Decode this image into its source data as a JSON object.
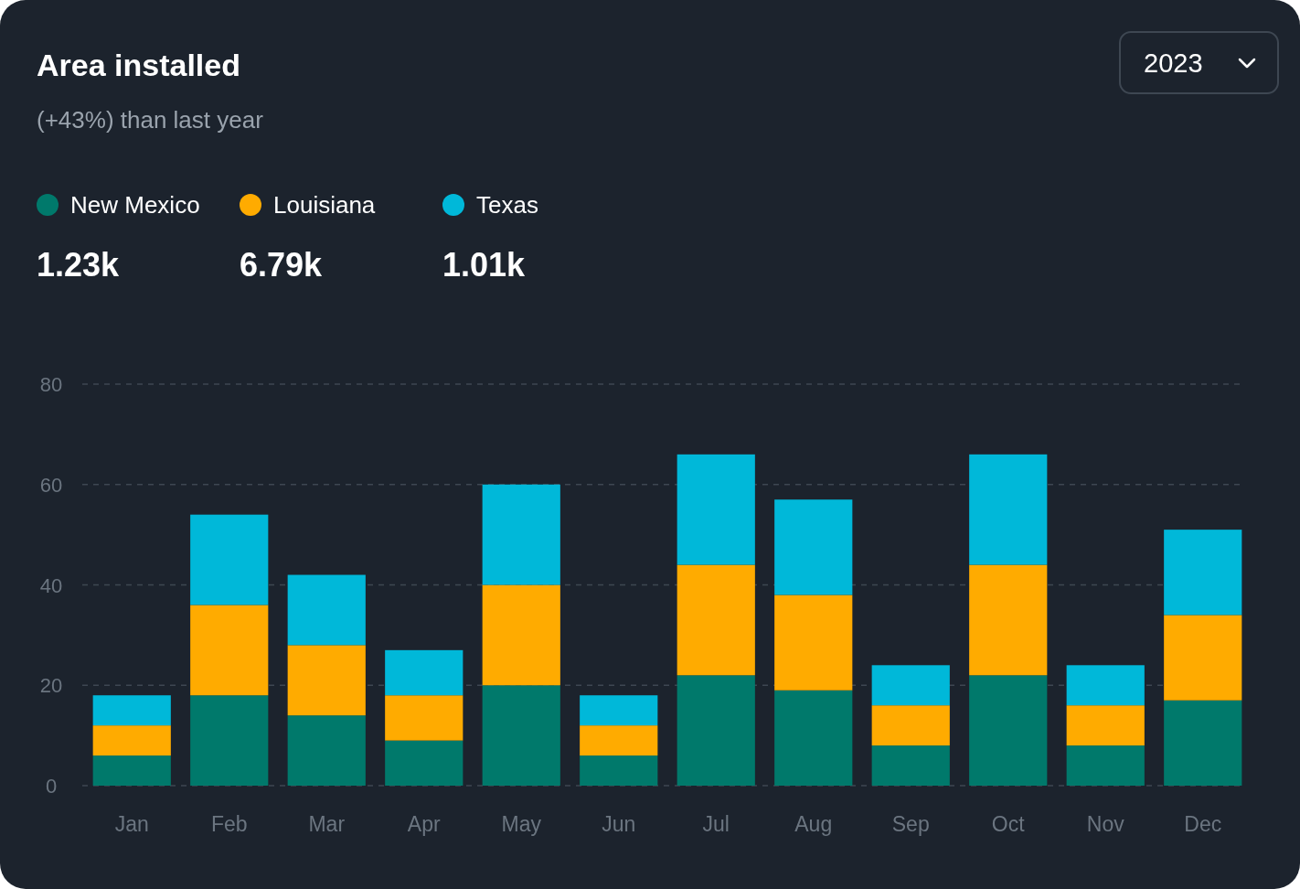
{
  "chart_data": {
    "type": "bar",
    "title": "Area installed",
    "subtitle": "(+43%) than last year",
    "stacked": true,
    "categories": [
      "Jan",
      "Feb",
      "Mar",
      "Apr",
      "May",
      "Jun",
      "Jul",
      "Aug",
      "Sep",
      "Oct",
      "Nov",
      "Dec"
    ],
    "series": [
      {
        "name": "New Mexico",
        "color": "#00796b",
        "values": [
          6,
          18,
          14,
          9,
          20,
          6,
          22,
          19,
          8,
          22,
          8,
          17
        ]
      },
      {
        "name": "Louisiana",
        "color": "#ffab00",
        "values": [
          6,
          18,
          14,
          9,
          20,
          6,
          22,
          19,
          8,
          22,
          8,
          17
        ]
      },
      {
        "name": "Texas",
        "color": "#00b8d9",
        "values": [
          6,
          18,
          14,
          9,
          20,
          6,
          22,
          19,
          8,
          22,
          8,
          17
        ]
      }
    ],
    "ylim": [
      0,
      80
    ],
    "yticks": [
      0,
      20,
      40,
      60,
      80
    ],
    "grid": "y",
    "legend": "top left",
    "annotations": [
      "1.23k",
      "6.79k",
      "1.01k",
      "2023"
    ]
  }
}
